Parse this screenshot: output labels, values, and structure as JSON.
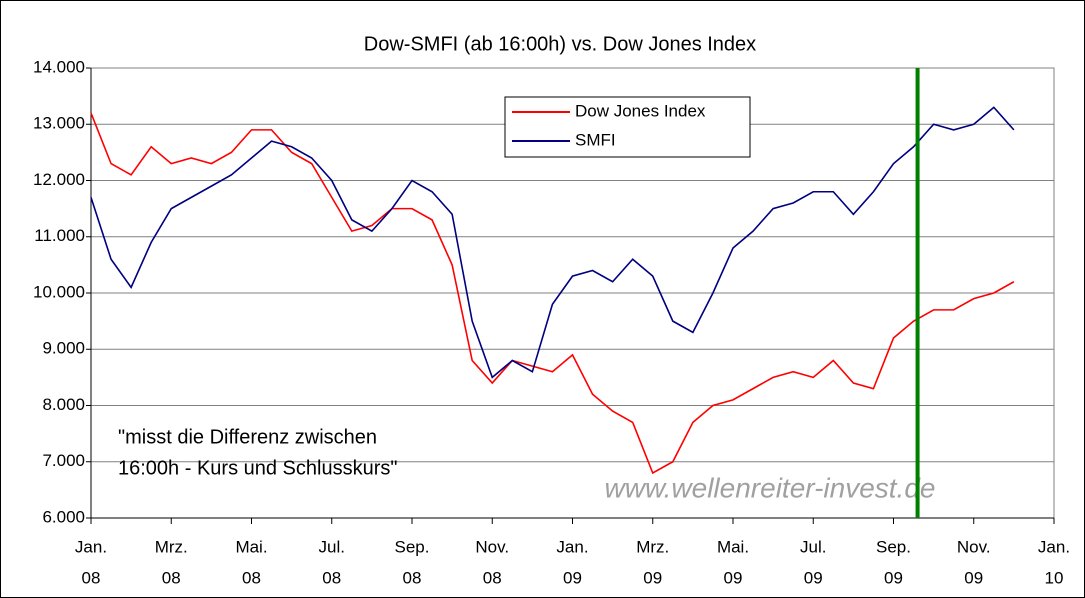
{
  "chart_data": {
    "type": "line",
    "title": "Dow-SMFI (ab 16:00h) vs. Dow Jones Index",
    "x": [
      0,
      0.5,
      1,
      1.5,
      2,
      2.5,
      3,
      3.5,
      4,
      4.5,
      5,
      5.5,
      6,
      6.5,
      7,
      7.5,
      8,
      8.5,
      9,
      9.5,
      10,
      10.5,
      11,
      11.5,
      12,
      12.5,
      13,
      13.5,
      14,
      14.5,
      15,
      15.5,
      16,
      16.5,
      17,
      17.5,
      18,
      18.5,
      19,
      19.5,
      20,
      20.5,
      21,
      21.5,
      22,
      22.5,
      23
    ],
    "series": [
      {
        "name": "Dow Jones Index",
        "color": "#ff0000",
        "values": [
          13200,
          12300,
          12100,
          12600,
          12300,
          12400,
          12300,
          12500,
          12900,
          12900,
          12500,
          12300,
          11700,
          11100,
          11200,
          11500,
          11500,
          11300,
          10500,
          8800,
          8400,
          8800,
          8700,
          8600,
          8900,
          8200,
          7900,
          7700,
          6800,
          7000,
          7700,
          8000,
          8100,
          8300,
          8500,
          8600,
          8500,
          8800,
          8400,
          8300,
          9200,
          9500,
          9700,
          9700,
          9900,
          10000,
          10200
        ]
      },
      {
        "name": "SMFI",
        "color": "#000080",
        "values": [
          11700,
          10600,
          10100,
          10900,
          11500,
          11700,
          11900,
          12100,
          12400,
          12700,
          12600,
          12400,
          12000,
          11300,
          11100,
          11500,
          12000,
          11800,
          11400,
          9500,
          8500,
          8800,
          8600,
          9800,
          10300,
          10400,
          10200,
          10600,
          10300,
          9500,
          9300,
          10000,
          10800,
          11100,
          11500,
          11600,
          11800,
          11800,
          11400,
          11800,
          12300,
          12600,
          13000,
          12900,
          13000,
          13300,
          12900
        ]
      }
    ],
    "xlim": [
      0,
      24
    ],
    "xticks": [
      {
        "value": 0,
        "label": [
          "Jan.",
          "08"
        ]
      },
      {
        "value": 2,
        "label": [
          "Mrz.",
          "08"
        ]
      },
      {
        "value": 4,
        "label": [
          "Mai.",
          "08"
        ]
      },
      {
        "value": 6,
        "label": [
          "Jul.",
          "08"
        ]
      },
      {
        "value": 8,
        "label": [
          "Sep.",
          "08"
        ]
      },
      {
        "value": 10,
        "label": [
          "Nov.",
          "08"
        ]
      },
      {
        "value": 12,
        "label": [
          "Jan.",
          "09"
        ]
      },
      {
        "value": 14,
        "label": [
          "Mrz.",
          "09"
        ]
      },
      {
        "value": 16,
        "label": [
          "Mai.",
          "09"
        ]
      },
      {
        "value": 18,
        "label": [
          "Jul.",
          "09"
        ]
      },
      {
        "value": 20,
        "label": [
          "Sep.",
          "09"
        ]
      },
      {
        "value": 22,
        "label": [
          "Nov.",
          "09"
        ]
      },
      {
        "value": 24,
        "label": [
          "Jan.",
          "10"
        ]
      }
    ],
    "ylim": [
      6000,
      14000
    ],
    "yticks": [
      {
        "value": 6000,
        "label": "6.000"
      },
      {
        "value": 7000,
        "label": "7.000"
      },
      {
        "value": 8000,
        "label": "8.000"
      },
      {
        "value": 9000,
        "label": "9.000"
      },
      {
        "value": 10000,
        "label": "10.000"
      },
      {
        "value": 11000,
        "label": "11.000"
      },
      {
        "value": 12000,
        "label": "12.000"
      },
      {
        "value": 13000,
        "label": "13.000"
      },
      {
        "value": 14000,
        "label": "14.000"
      }
    ],
    "grid": true,
    "marker_line": {
      "x": 20.6,
      "color": "#008000"
    },
    "annotation": [
      "\"misst die Differenz zwischen",
      "16:00h - Kurs und Schlusskurs\""
    ],
    "watermark": "www.wellenreiter-invest.de"
  }
}
